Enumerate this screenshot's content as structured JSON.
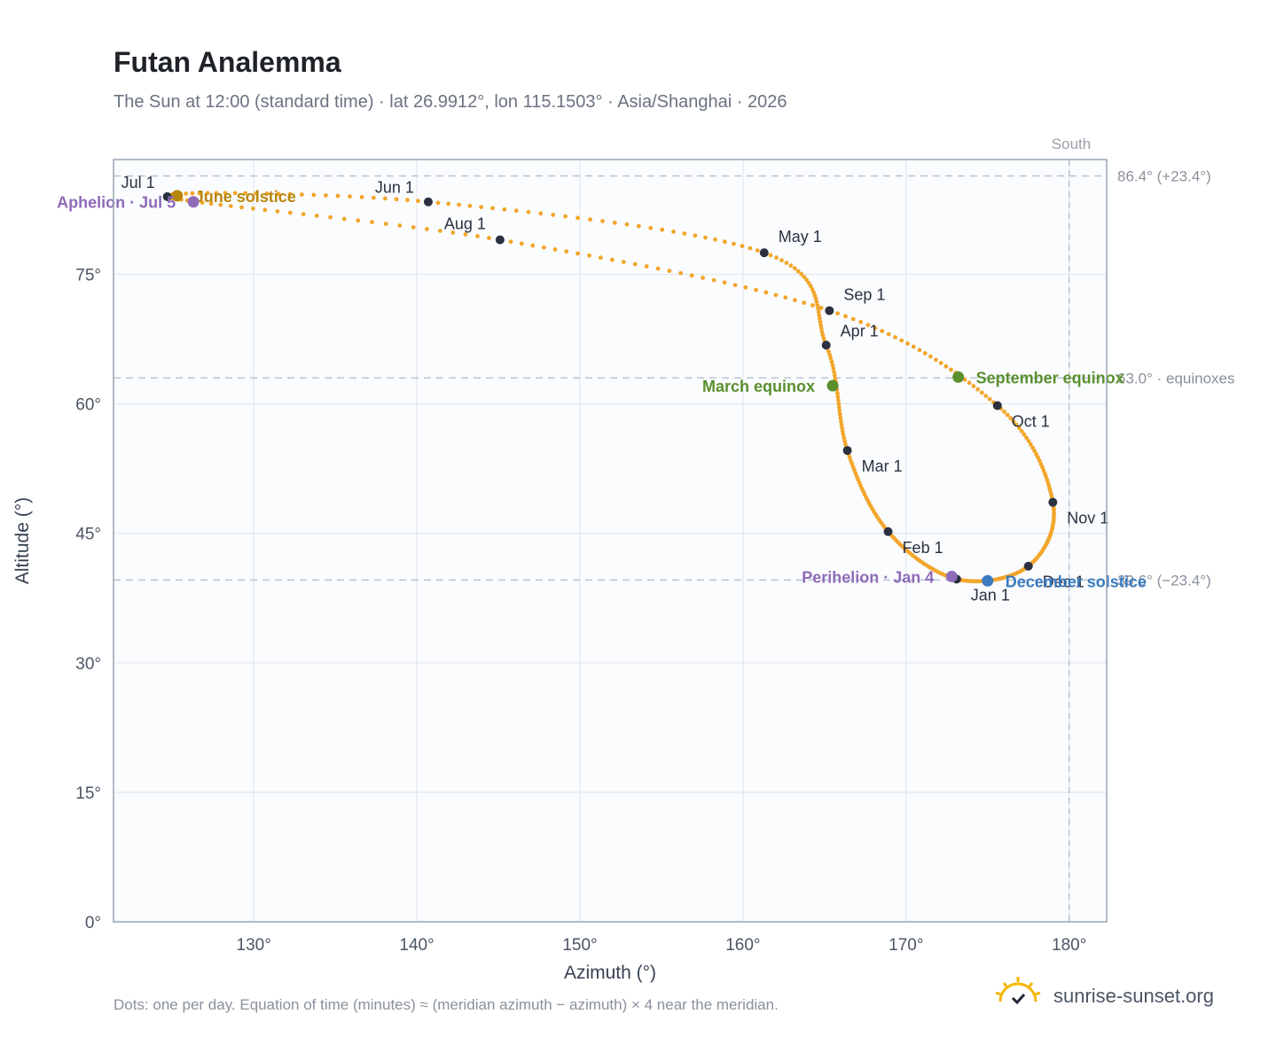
{
  "header": {
    "title": "Futan Analemma",
    "subtitle": "The Sun at 12:00 (standard time) · lat 26.9912°, lon 115.1503° · Asia/Shanghai · 2026"
  },
  "footer": {
    "note": "Dots: one per day. Equation of time (minutes) ≈ (meridian azimuth − azimuth) × 4 near the meridian.",
    "brand": "sunrise-sunset.org",
    "logo_icon": "sun-logo-icon"
  },
  "chart_data": {
    "type": "scatter",
    "title": "Futan Analemma",
    "xlabel": "Azimuth (°)",
    "ylabel": "Altitude (°)",
    "xlim": [
      121.4,
      182.3
    ],
    "ylim": [
      0,
      88.3
    ],
    "xticks": [
      130,
      140,
      150,
      160,
      170,
      180
    ],
    "xtick_labels": [
      "130°",
      "140°",
      "150°",
      "160°",
      "170°",
      "180°"
    ],
    "yticks": [
      0,
      15,
      30,
      45,
      60,
      75
    ],
    "ytick_labels": [
      "0°",
      "15°",
      "30°",
      "45°",
      "60°",
      "75°"
    ],
    "grid": true,
    "meridian": {
      "azimuth": 180,
      "label": "South"
    },
    "reference_lines": [
      {
        "altitude": 86.4,
        "label": "86.4° (+23.4°)"
      },
      {
        "altitude": 63.0,
        "label": "63.0° · equinoxes"
      },
      {
        "altitude": 39.6,
        "label": "39.6° (−23.4°)"
      }
    ],
    "month_starts": [
      {
        "label": "Jan 1",
        "azimuth": 173.1,
        "altitude": 39.7
      },
      {
        "label": "Feb 1",
        "azimuth": 168.9,
        "altitude": 45.2
      },
      {
        "label": "Mar 1",
        "azimuth": 166.4,
        "altitude": 54.6
      },
      {
        "label": "Apr 1",
        "azimuth": 165.1,
        "altitude": 66.8
      },
      {
        "label": "May 1",
        "azimuth": 161.3,
        "altitude": 77.5
      },
      {
        "label": "Jun 1",
        "azimuth": 140.7,
        "altitude": 83.4
      },
      {
        "label": "Jul 1",
        "azimuth": 124.7,
        "altitude": 84.0
      },
      {
        "label": "Aug 1",
        "azimuth": 145.1,
        "altitude": 79.0
      },
      {
        "label": "Sep 1",
        "azimuth": 165.3,
        "altitude": 70.8
      },
      {
        "label": "Oct 1",
        "azimuth": 175.6,
        "altitude": 59.8
      },
      {
        "label": "Nov 1",
        "azimuth": 179.0,
        "altitude": 48.6
      },
      {
        "label": "Dec 1",
        "azimuth": 177.5,
        "altitude": 41.2
      }
    ],
    "events": [
      {
        "label": "June solstice",
        "azimuth": 125.3,
        "altitude": 84.1,
        "color": "#b8860b",
        "side": "right"
      },
      {
        "label": "Aphelion · Jul 5",
        "azimuth": 126.3,
        "altitude": 83.4,
        "color": "#8e6bb8",
        "side": "left"
      },
      {
        "label": "March equinox",
        "azimuth": 165.5,
        "altitude": 62.1,
        "color": "#5a8f2e",
        "side": "left"
      },
      {
        "label": "September equinox",
        "azimuth": 173.2,
        "altitude": 63.1,
        "color": "#5a8f2e",
        "side": "right"
      },
      {
        "label": "Perihelion · Jan 4",
        "azimuth": 172.8,
        "altitude": 40.0,
        "color": "#8e6bb8",
        "side": "left"
      },
      {
        "label": "December solstice",
        "azimuth": 175.0,
        "altitude": 39.5,
        "color": "#3a7bc0",
        "side": "right"
      }
    ],
    "curve_color": "#f2a62a"
  }
}
